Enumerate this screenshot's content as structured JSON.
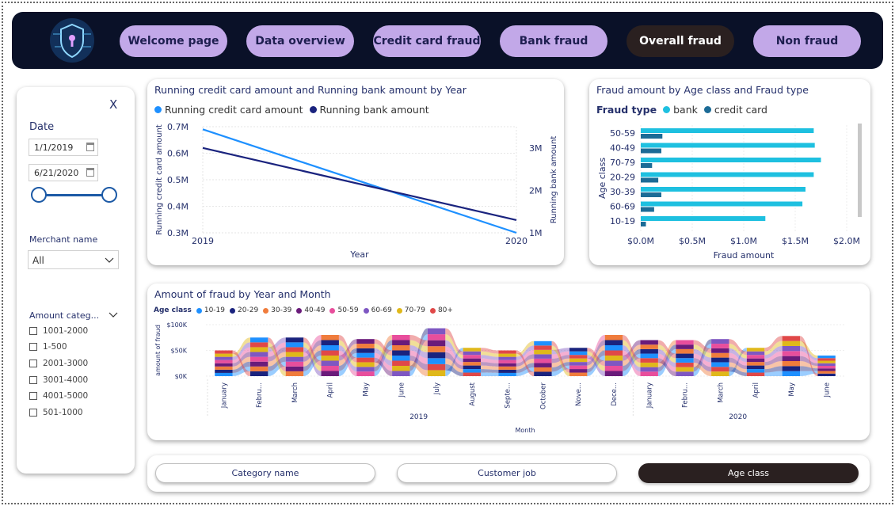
{
  "nav": {
    "logo_icon": "shield-lock-icon",
    "items": [
      {
        "label": "Welcome page",
        "active": false
      },
      {
        "label": "Data overview",
        "active": false
      },
      {
        "label": "Credit card fraud",
        "active": false
      },
      {
        "label": "Bank fraud",
        "active": false
      },
      {
        "label": "Overall fraud",
        "active": true
      },
      {
        "label": "Non fraud",
        "active": false
      }
    ]
  },
  "filters": {
    "close_label": "X",
    "date_label": "Date",
    "start_date": "1/1/2019",
    "end_date": "6/21/2020",
    "merchant_label": "Merchant name",
    "merchant_value": "All",
    "amount_label": "Amount categ...",
    "amount_options": [
      "1001-2000",
      "1-500",
      "2001-3000",
      "3001-4000",
      "4001-5000",
      "501-1000"
    ]
  },
  "colors": {
    "credit": "#1e90ff",
    "bank": "#1a237e",
    "bar_bank": "#1ec0e0",
    "bar_credit": "#1c6b96",
    "nav_active": "#2a2020",
    "nav_default": "#c2a8e8"
  },
  "chart_data": [
    {
      "type": "line",
      "title": "Running credit card amount and Running bank amount by Year",
      "xlabel": "Year",
      "ylabel": "Running credit card amount",
      "ylabel2": "Running bank amount",
      "x": [
        "2019",
        "2020"
      ],
      "yticks": [
        "0.3M",
        "0.4M",
        "0.5M",
        "0.6M",
        "0.7M"
      ],
      "y2ticks": [
        "1M",
        "2M",
        "3M"
      ],
      "ylim": [
        0.3,
        0.7
      ],
      "y2lim": [
        1.0,
        3.5
      ],
      "series": [
        {
          "name": "Running credit card amount",
          "axis": "left",
          "values": [
            0.69,
            0.3
          ]
        },
        {
          "name": "Running bank amount",
          "axis": "right",
          "values": [
            3.0,
            1.3
          ]
        }
      ]
    },
    {
      "type": "bar",
      "orientation": "horizontal",
      "title": "Fraud amount by Age class and Fraud type",
      "legend_title": "Fraud type",
      "xlabel": "Fraud amount",
      "ylabel": "Age class",
      "categories": [
        "50-59",
        "40-49",
        "70-79",
        "20-29",
        "30-39",
        "60-69",
        "10-19"
      ],
      "xticks": [
        "$0.0M",
        "$0.5M",
        "$1.0M",
        "$1.5M",
        "$2.0M"
      ],
      "xlim": [
        0,
        2.0
      ],
      "series": [
        {
          "name": "bank",
          "values": [
            1.68,
            1.69,
            1.75,
            1.68,
            1.6,
            1.57,
            1.21
          ]
        },
        {
          "name": "credit card",
          "values": [
            0.21,
            0.2,
            0.11,
            0.17,
            0.2,
            0.13,
            0.05
          ]
        }
      ]
    },
    {
      "type": "area",
      "subtype": "ribbon",
      "title": "Amount of fraud by Year and Month",
      "legend_title": "Age class",
      "ylabel": "amount of fraud",
      "xlabel": "Month",
      "yticks": [
        "$0K",
        "$50K",
        "$100K"
      ],
      "ylim": [
        0,
        100
      ],
      "categories": [
        "January",
        "Febru...",
        "March",
        "April",
        "May",
        "June",
        "July",
        "August",
        "Septe...",
        "October",
        "Nove...",
        "Dece...",
        "January",
        "Febru...",
        "March",
        "April",
        "May",
        "June"
      ],
      "years": [
        {
          "label": "2019",
          "count": 12
        },
        {
          "label": "2020",
          "count": 6
        }
      ],
      "totals": [
        50,
        75,
        75,
        80,
        72,
        80,
        93,
        55,
        50,
        68,
        55,
        80,
        70,
        70,
        72,
        55,
        78,
        40
      ],
      "series": [
        {
          "name": "10-19",
          "color": "#1e90ff"
        },
        {
          "name": "20-29",
          "color": "#1a237e"
        },
        {
          "name": "30-39",
          "color": "#f07c3c"
        },
        {
          "name": "40-49",
          "color": "#6a1b7a"
        },
        {
          "name": "50-59",
          "color": "#e84e9c"
        },
        {
          "name": "60-69",
          "color": "#7e57c2"
        },
        {
          "name": "70-79",
          "color": "#e0b81a"
        },
        {
          "name": "80+",
          "color": "#e04848"
        }
      ]
    }
  ],
  "bottom": {
    "buttons": [
      {
        "label": "Category name",
        "active": false
      },
      {
        "label": "Customer job",
        "active": false
      },
      {
        "label": "Age class",
        "active": true
      }
    ]
  }
}
